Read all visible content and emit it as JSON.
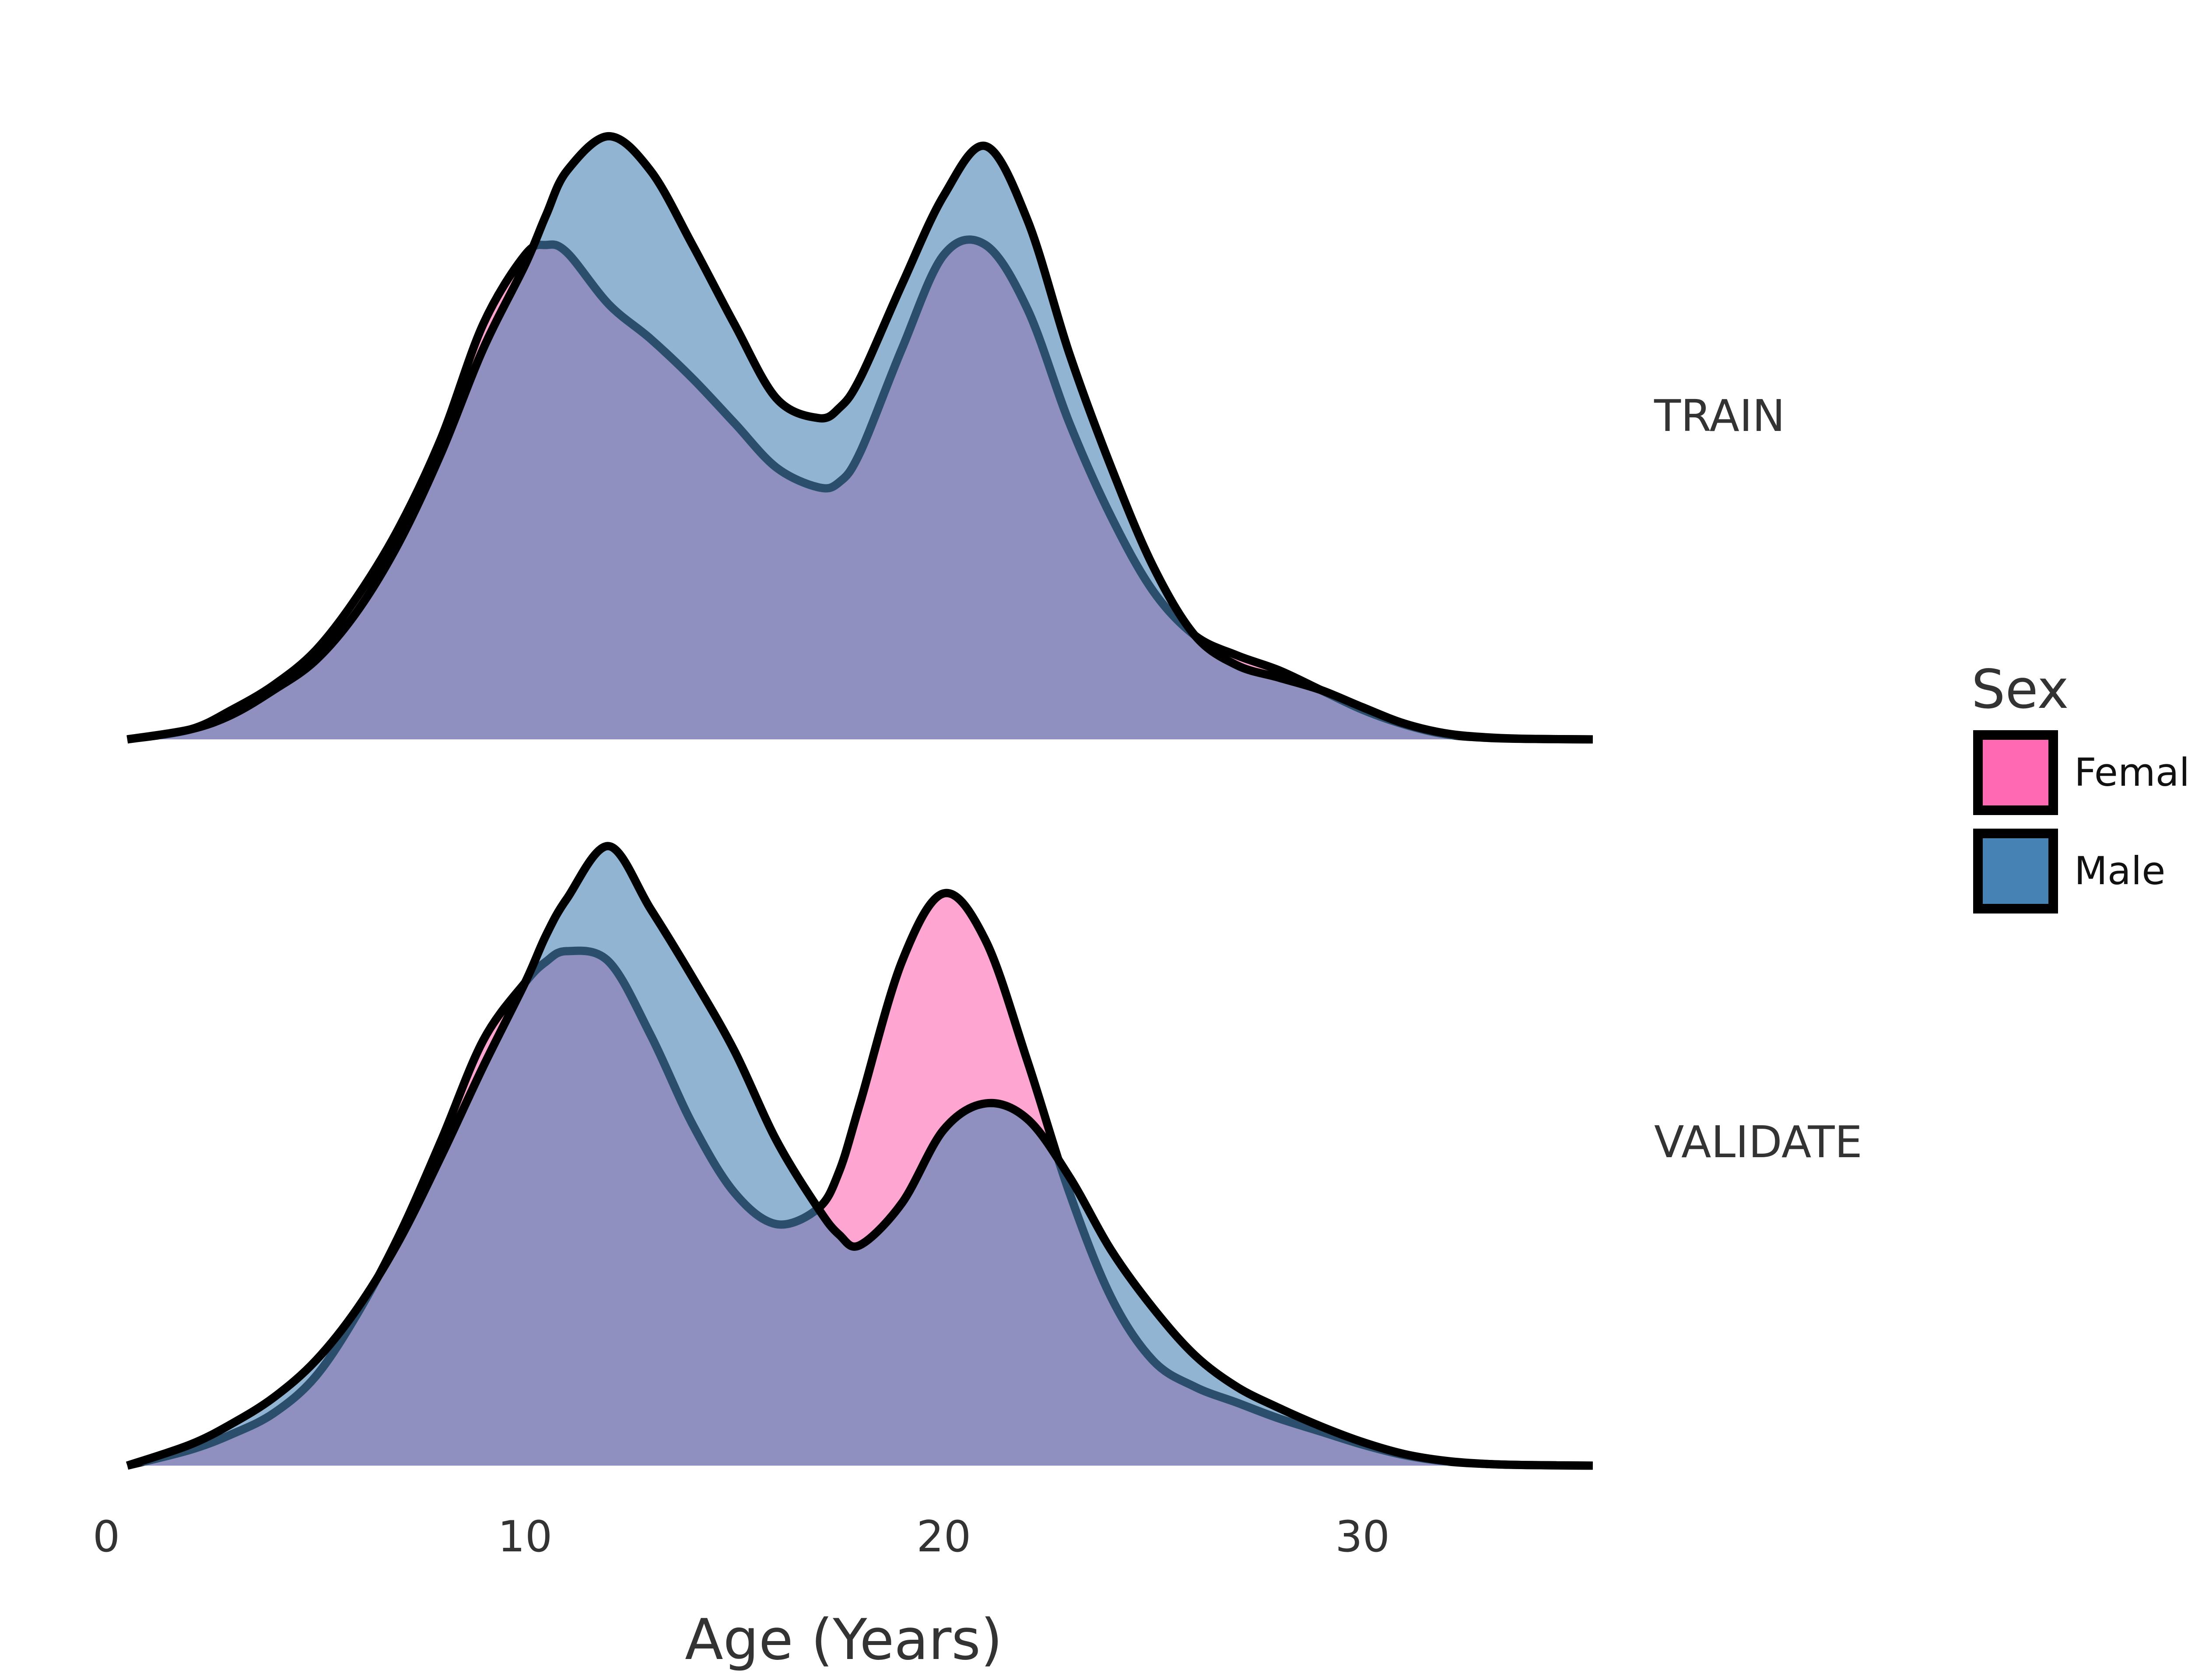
{
  "chart_data": {
    "type": "area",
    "xlabel": "Age (Years)",
    "ylabel": "",
    "xlim": [
      0,
      35
    ],
    "xticks": [
      0,
      10,
      20,
      30
    ],
    "grid": false,
    "legend_position": "right",
    "legend": {
      "title": "Sex",
      "entries": [
        {
          "name": "Female",
          "color": "#ff69b4"
        },
        {
          "name": "Male",
          "color": "#4682b4"
        }
      ]
    },
    "fill_alpha": 0.6,
    "x": [
      0.5,
      2,
      3,
      4,
      5,
      6,
      7,
      8,
      9,
      10,
      10.5,
      11,
      12,
      13,
      14,
      15,
      16,
      17,
      17.5,
      18,
      19,
      20,
      21,
      22,
      23,
      24,
      25,
      26,
      27,
      28,
      29,
      30,
      31,
      32,
      33,
      34,
      35.5
    ],
    "panels": [
      {
        "label": "TRAIN",
        "series": [
          {
            "name": "Female",
            "values": [
              0.0,
              0.02,
              0.06,
              0.11,
              0.18,
              0.29,
              0.43,
              0.61,
              0.84,
              0.98,
              1.0,
              0.985,
              0.88,
              0.81,
              0.73,
              0.64,
              0.55,
              0.51,
              0.52,
              0.58,
              0.79,
              0.98,
              1.0,
              0.87,
              0.64,
              0.45,
              0.3,
              0.21,
              0.17,
              0.14,
              0.1,
              0.06,
              0.03,
              0.01,
              0.003,
              0.001,
              0.0
            ]
          },
          {
            "name": "Male",
            "values": [
              0.0,
              0.02,
              0.05,
              0.1,
              0.16,
              0.26,
              0.4,
              0.58,
              0.79,
              0.96,
              1.06,
              1.15,
              1.22,
              1.15,
              1.0,
              0.84,
              0.69,
              0.65,
              0.67,
              0.73,
              0.92,
              1.1,
              1.2,
              1.05,
              0.78,
              0.55,
              0.35,
              0.21,
              0.15,
              0.125,
              0.1,
              0.065,
              0.032,
              0.012,
              0.004,
              0.001,
              0.0
            ]
          }
        ]
      },
      {
        "label": "VALIDATE",
        "series": [
          {
            "name": "Female",
            "values": [
              0.0,
              0.03,
              0.06,
              0.1,
              0.17,
              0.29,
              0.44,
              0.62,
              0.81,
              0.92,
              0.96,
              0.98,
              0.96,
              0.82,
              0.65,
              0.52,
              0.46,
              0.49,
              0.56,
              0.69,
              0.96,
              1.09,
              1.0,
              0.77,
              0.52,
              0.32,
              0.2,
              0.15,
              0.12,
              0.09,
              0.065,
              0.04,
              0.02,
              0.008,
              0.003,
              0.001,
              0.0
            ]
          },
          {
            "name": "Male",
            "values": [
              0.0,
              0.04,
              0.08,
              0.13,
              0.2,
              0.3,
              0.43,
              0.59,
              0.76,
              0.92,
              1.01,
              1.08,
              1.18,
              1.06,
              0.93,
              0.79,
              0.62,
              0.49,
              0.44,
              0.42,
              0.5,
              0.64,
              0.69,
              0.66,
              0.55,
              0.41,
              0.3,
              0.21,
              0.15,
              0.11,
              0.075,
              0.045,
              0.022,
              0.009,
              0.003,
              0.001,
              0.0
            ]
          }
        ]
      }
    ]
  }
}
